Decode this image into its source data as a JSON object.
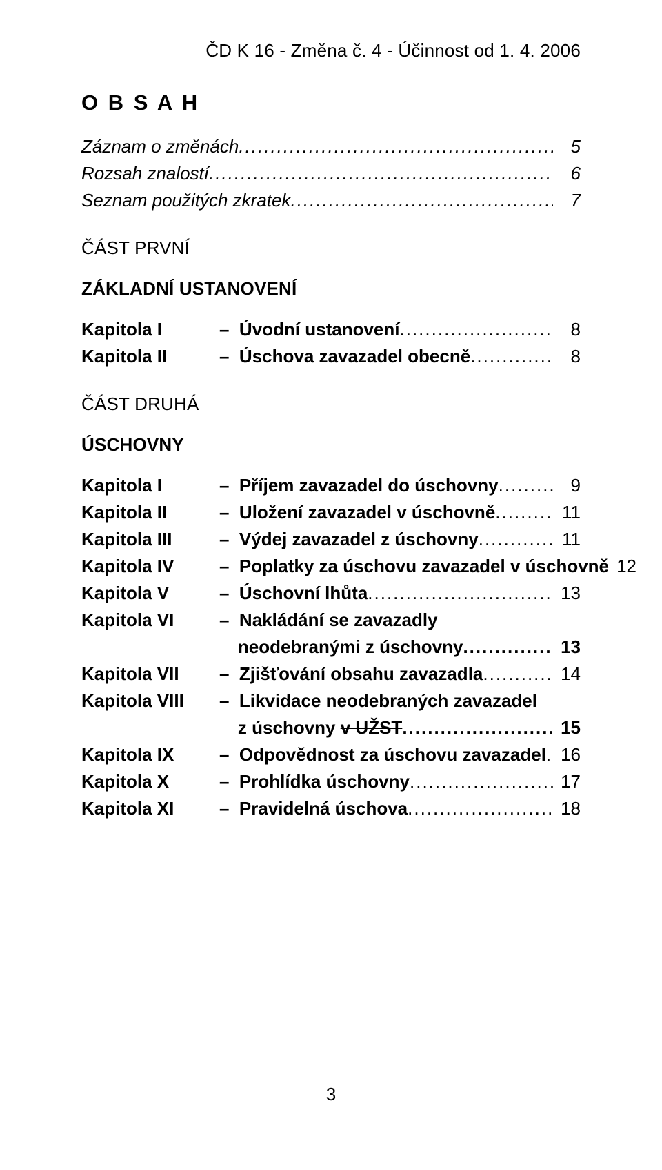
{
  "header": "ČD K 16 - Změna č. 4 - Účinnost od 1. 4. 2006",
  "title": "O B S A H",
  "intro": [
    {
      "label": "Záznam o změnách",
      "page": "5"
    },
    {
      "label": "Rozsah znalostí",
      "page": "6"
    },
    {
      "label": "Seznam použitých zkratek",
      "page": "7"
    }
  ],
  "part1": {
    "part_label": "ČÁST PRVNÍ",
    "part_title": "ZÁKLADNÍ USTANOVENÍ",
    "items": [
      {
        "chapter": "Kapitola I",
        "title": "Úvodní ustanovení",
        "page": "8"
      },
      {
        "chapter": "Kapitola II",
        "title": "Úschova zavazadel obecně",
        "page": "8"
      }
    ]
  },
  "part2": {
    "part_label": "ČÁST DRUHÁ",
    "part_title": "ÚSCHOVNY",
    "items": [
      {
        "chapter": "Kapitola I",
        "title": "Příjem zavazadel do úschovny",
        "page": "9"
      },
      {
        "chapter": "Kapitola II",
        "title": "Uložení zavazadel v úschovně",
        "page": "11"
      },
      {
        "chapter": "Kapitola III",
        "title": "Výdej zavazadel z úschovny",
        "page": "11"
      },
      {
        "chapter": "Kapitola IV",
        "title": "Poplatky za úschovu zavazadel v úschovně",
        "page": "12"
      },
      {
        "chapter": "Kapitola V",
        "title": "Úschovní lhůta",
        "page": "13"
      }
    ],
    "item6": {
      "chapter": "Kapitola VI",
      "title_a": "Nakládání se zavazadly",
      "title_b": "neodebranými z úschovny",
      "page": "13"
    },
    "item7": {
      "chapter": "Kapitola VII",
      "title": "Zjišťování obsahu zavazadla",
      "page": "14"
    },
    "item8": {
      "chapter": "Kapitola VIII",
      "title_a": "Likvidace neodebraných zavazadel",
      "title_b_pre": "z úschovny ",
      "title_b_strike": "v UŽST",
      "page": "15"
    },
    "item9": {
      "chapter": "Kapitola IX",
      "title": "Odpovědnost za úschovu zavazadel",
      "page": "16"
    },
    "item10": {
      "chapter": "Kapitola X",
      "title": "Prohlídka úschovny",
      "page": "17"
    },
    "item11": {
      "chapter": "Kapitola XI",
      "title": "Pravidelná úschova",
      "page": "18"
    }
  },
  "dots": "........................................................................................................................",
  "footer": "3",
  "dash": "–  "
}
